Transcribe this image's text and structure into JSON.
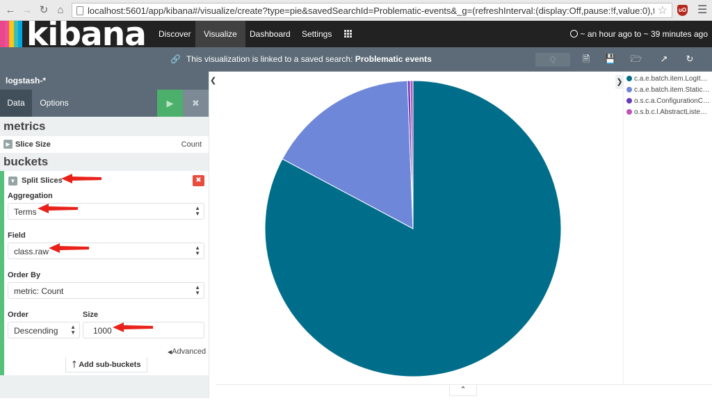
{
  "browser": {
    "url": "localhost:5601/app/kibana#/visualize/create?type=pie&savedSearchId=Problematic-events&_g=(refreshInterval:(display:Off,pause:!f,value:0),tim…",
    "ublock_badge": "uO"
  },
  "logo": {
    "text": "kibana"
  },
  "topnav": {
    "items": [
      "Discover",
      "Visualize",
      "Dashboard",
      "Settings"
    ],
    "active": "Visualize",
    "time_range": "~ an hour ago to ~ 39 minutes ago"
  },
  "linkbar": {
    "prefix": "This visualization is linked to a saved search:",
    "search_name": "Problematic events",
    "search_placeholder": "Q"
  },
  "sidebar": {
    "index_pattern": "logstash-*",
    "tabs": {
      "data": "Data",
      "options": "Options"
    },
    "metrics_title": "metrics",
    "metric": {
      "label": "Slice Size",
      "value": "Count"
    },
    "buckets_title": "buckets",
    "bucket": {
      "label": "Split Slices",
      "aggregation_label": "Aggregation",
      "aggregation_value": "Terms",
      "field_label": "Field",
      "field_value": "class.raw",
      "order_by_label": "Order By",
      "order_by_value": "metric: Count",
      "order_label": "Order",
      "order_value": "Descending",
      "size_label": "Size",
      "size_value": "1000",
      "advanced": "Advanced",
      "add_sub": "Add sub-buckets"
    }
  },
  "chart_data": {
    "type": "pie",
    "title": "",
    "slices": [
      {
        "name": "c.a.e.batch.item.LogIt…",
        "value": 82.8,
        "color": "#006e8a"
      },
      {
        "name": "c.a.e.batch.item.Static…",
        "value": 16.6,
        "color": "#6f87d8"
      },
      {
        "name": "o.s.c.a.ConfigurationC…",
        "value": 0.3,
        "color": "#663db8"
      },
      {
        "name": "o.s.b.c.l.AbstractListe…",
        "value": 0.3,
        "color": "#bc52bc"
      }
    ]
  }
}
